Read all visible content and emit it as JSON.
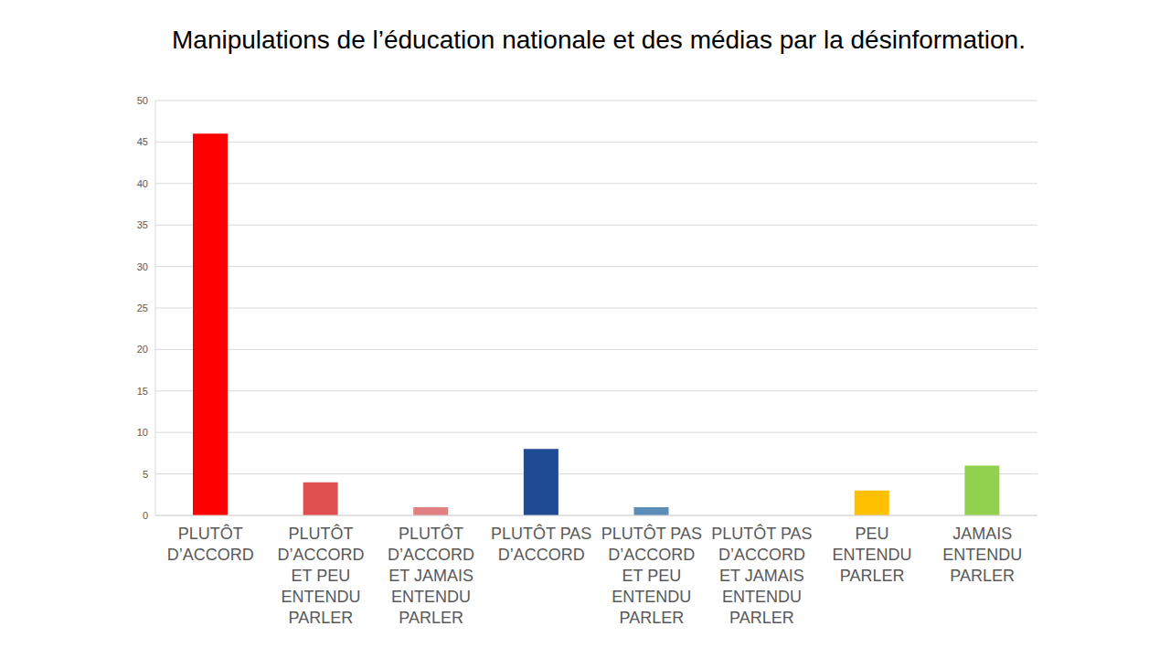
{
  "chart_data": {
    "type": "bar",
    "title": "Manipulations de l’éducation nationale et des médias par la désinformation.",
    "categories": [
      "PLUTÔT D’ACCORD",
      "PLUTÔT D’ACCORD ET PEU ENTENDU PARLER",
      "PLUTÔT D’ACCORD ET JAMAIS ENTENDU PARLER",
      "PLUTÔT PAS D’ACCORD",
      "PLUTÔT PAS D’ACCORD ET PEU ENTENDU PARLER",
      "PLUTÔT PAS D’ACCORD ET JAMAIS ENTENDU PARLER",
      "PEU ENTENDU PARLER",
      "JAMAIS ENTENDU PARLER"
    ],
    "values": [
      46,
      4,
      1,
      8,
      1,
      0,
      3,
      6
    ],
    "colors": [
      "#ff0000",
      "#e05050",
      "#e08080",
      "#1f4a94",
      "#5b8db8",
      "#9dc3e6",
      "#ffc000",
      "#92d050"
    ],
    "ylim": [
      0,
      50
    ],
    "yticks": [
      0,
      5,
      10,
      15,
      20,
      25,
      30,
      35,
      40,
      45,
      50
    ],
    "grid": true
  }
}
